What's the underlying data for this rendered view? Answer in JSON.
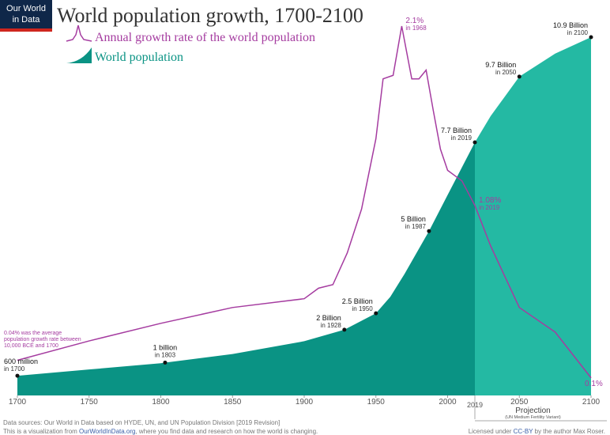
{
  "logo": [
    "Our World",
    "in Data"
  ],
  "chart_data": {
    "type": "area-line",
    "title": "World population growth, 1700-2100",
    "xlim": [
      1700,
      2100
    ],
    "xticks": [
      1700,
      1750,
      1800,
      1850,
      1900,
      1950,
      2000,
      2050,
      2100
    ],
    "projection_start": 2019,
    "projection_label": "Projection",
    "projection_note": "(UN Medium Fertility Variant)",
    "projection_color": "#24b9a3",
    "series": [
      {
        "name": "World population",
        "color": "#0a9384",
        "x": [
          1700,
          1750,
          1800,
          1803,
          1850,
          1900,
          1928,
          1950,
          1960,
          1970,
          1987,
          2000,
          2019,
          2030,
          2050,
          2075,
          2100
        ],
        "values": [
          0.6,
          0.79,
          0.98,
          1.0,
          1.26,
          1.65,
          2.0,
          2.5,
          3.0,
          3.7,
          5.0,
          6.1,
          7.7,
          8.5,
          9.7,
          10.4,
          10.9
        ]
      },
      {
        "name": "Annual growth rate of the world population",
        "color": "#a53ca0",
        "axis": "y2",
        "x": [
          1700,
          1750,
          1800,
          1850,
          1900,
          1910,
          1920,
          1930,
          1940,
          1950,
          1955,
          1962,
          1968,
          1975,
          1980,
          1985,
          1990,
          1995,
          2000,
          2010,
          2019,
          2030,
          2050,
          2075,
          2100
        ],
        "values": [
          0.2,
          0.31,
          0.41,
          0.5,
          0.55,
          0.61,
          0.63,
          0.81,
          1.06,
          1.46,
          1.8,
          1.82,
          2.1,
          1.8,
          1.8,
          1.85,
          1.62,
          1.4,
          1.28,
          1.22,
          1.08,
          0.85,
          0.5,
          0.36,
          0.1
        ]
      }
    ],
    "point_labels": [
      {
        "x": 1700,
        "value": 0.6,
        "label": "600 million",
        "sub": "in 1700"
      },
      {
        "x": 1803,
        "value": 1.0,
        "label": "1 billion",
        "sub": "in 1803"
      },
      {
        "x": 1928,
        "value": 2.0,
        "label": "2 Billion",
        "sub": "in 1928"
      },
      {
        "x": 1950,
        "value": 2.5,
        "label": "2.5 Billion",
        "sub": "in 1950"
      },
      {
        "x": 1987,
        "value": 5.0,
        "label": "5 Billion",
        "sub": "in 1987"
      },
      {
        "x": 2019,
        "value": 7.7,
        "label": "7.7 Billion",
        "sub": "in 2019"
      },
      {
        "x": 2050,
        "value": 9.7,
        "label": "9.7 Billion",
        "sub": "in 2050"
      },
      {
        "x": 2100,
        "value": 10.9,
        "label": "10.9 Billion",
        "sub": "in 2100"
      }
    ],
    "growth_labels": [
      {
        "x": 1968,
        "value": 2.1,
        "label": "2.1%",
        "sub": "in 1968"
      },
      {
        "x": 2019,
        "value": 1.08,
        "label": "1.08%",
        "sub": "in 2019"
      },
      {
        "x": 2100,
        "value": 0.1,
        "label": "0.1%"
      }
    ],
    "annotation": "0.04% was the average population growth rate between 10,000 BCE and 1700"
  },
  "footer": {
    "line1": "Data sources: Our World in Data based on HYDE, UN, and UN Population Division [2019 Revision]",
    "line2a": "This is a visualization from ",
    "line2link": "OurWorldInData.org",
    "line2b": ", where you find data and research on how the world is changing.",
    "licenseA": "Licensed under ",
    "licenseLink": "CC-BY",
    "licenseB": " by the author Max Roser."
  }
}
